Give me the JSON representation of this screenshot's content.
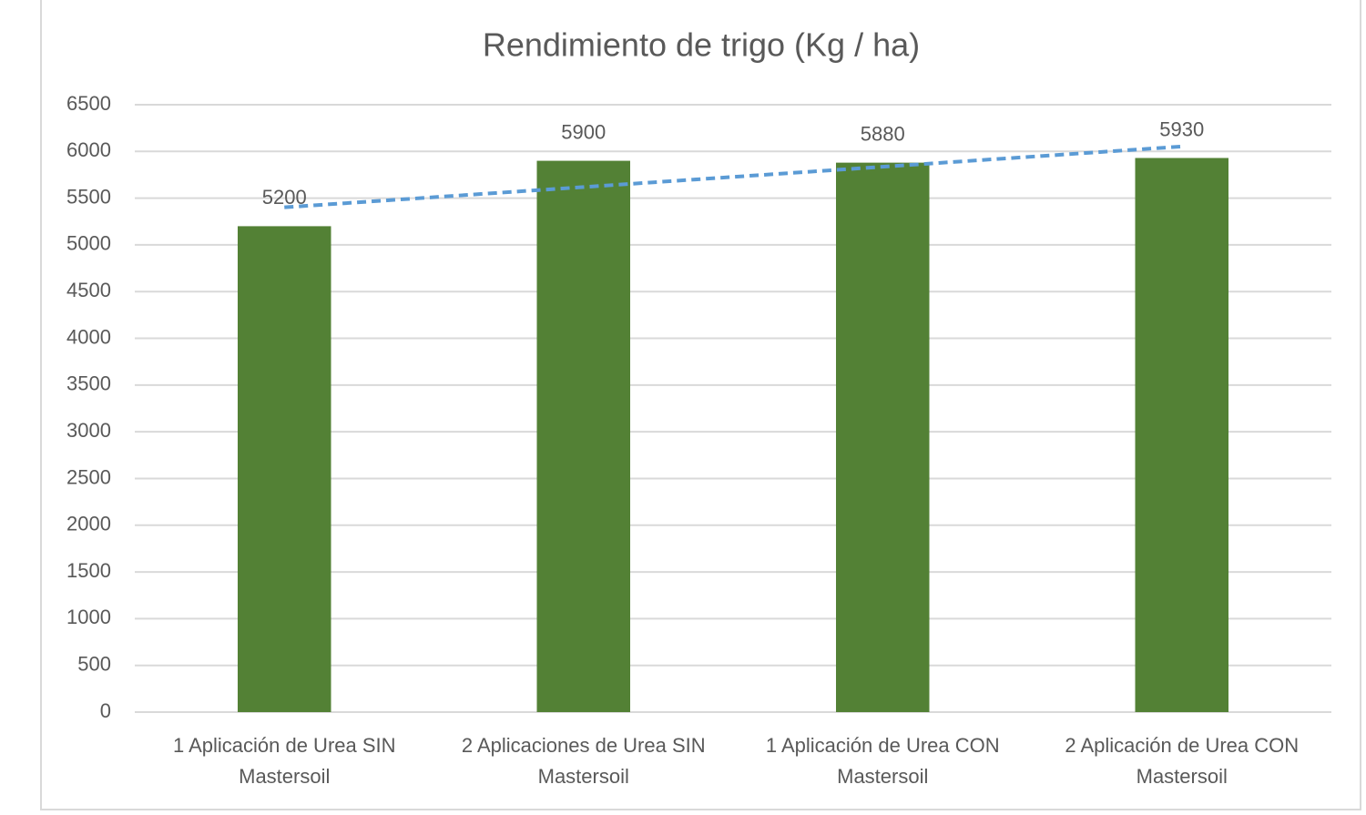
{
  "chart_data": {
    "type": "bar",
    "title": "Rendimiento de trigo (Kg / ha)",
    "categories": [
      "1 Aplicación de Urea SIN Mastersoil",
      "2 Aplicaciones de Urea SIN Mastersoil",
      "1 Aplicación de Urea CON Mastersoil",
      "2 Aplicación de Urea CON Mastersoil"
    ],
    "values": [
      5200,
      5900,
      5880,
      5930
    ],
    "color": "#538135",
    "ylim": [
      0,
      6500
    ],
    "yticks": [
      0,
      500,
      1000,
      1500,
      2000,
      2500,
      3000,
      3500,
      4000,
      4500,
      5000,
      5500,
      6000,
      6500
    ],
    "grid": true,
    "data_labels": true,
    "trendline": {
      "type": "linear",
      "color": "#5b9bd5",
      "dashed": true
    }
  }
}
